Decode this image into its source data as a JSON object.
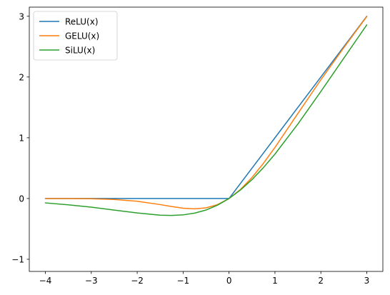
{
  "chart_data": {
    "type": "line",
    "title": "",
    "xlabel": "",
    "ylabel": "",
    "xlim": [
      -4.35,
      3.35
    ],
    "ylim": [
      -1.2,
      3.15
    ],
    "x_ticks": [
      -4,
      -3,
      -2,
      -1,
      0,
      1,
      2,
      3
    ],
    "y_ticks": [
      -1,
      0,
      1,
      2,
      3
    ],
    "grid": false,
    "legend_position": "top-left",
    "x": [
      -4.0,
      -3.5,
      -3.0,
      -2.5,
      -2.0,
      -1.5,
      -1.25,
      -1.0,
      -0.75,
      -0.5,
      -0.25,
      0.0,
      0.25,
      0.5,
      0.75,
      1.0,
      1.5,
      2.0,
      2.5,
      3.0
    ],
    "series": [
      {
        "name": "ReLU(x)",
        "color": "#1f77b4",
        "values": [
          0,
          0,
          0,
          0,
          0,
          0,
          0,
          0,
          0,
          0,
          0,
          0,
          0.25,
          0.5,
          0.75,
          1.0,
          1.5,
          2.0,
          2.5,
          3.0
        ]
      },
      {
        "name": "GELU(x)",
        "color": "#ff7f0e",
        "values": [
          -0.0001,
          -0.0008,
          -0.004,
          -0.016,
          -0.045,
          -0.1,
          -0.132,
          -0.159,
          -0.17,
          -0.154,
          -0.1,
          0.0,
          0.15,
          0.346,
          0.58,
          0.841,
          1.4,
          1.955,
          2.484,
          2.996
        ]
      },
      {
        "name": "SiLU(x)",
        "color": "#2ca02c",
        "values": [
          -0.072,
          -0.103,
          -0.142,
          -0.19,
          -0.238,
          -0.274,
          -0.278,
          -0.269,
          -0.24,
          -0.189,
          -0.109,
          0.0,
          0.141,
          0.311,
          0.51,
          0.731,
          1.227,
          1.762,
          2.31,
          2.858
        ]
      }
    ]
  }
}
